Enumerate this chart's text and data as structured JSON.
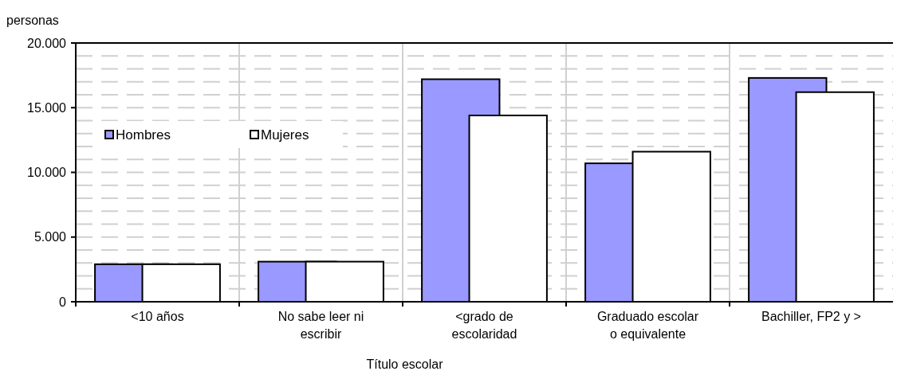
{
  "chart_data": {
    "type": "bar",
    "ylabel": "personas",
    "xlabel": "Título escolar",
    "categories": [
      "<10 años",
      "No sabe leer ni\nescribir",
      "<grado de\nescolaridad",
      "Graduado escolar\no equivalente",
      "Bachiller, FP2 y >"
    ],
    "series": [
      {
        "name": "Hombres",
        "color": "#9999ff",
        "values": [
          2900,
          3100,
          17200,
          10700,
          17300
        ]
      },
      {
        "name": "Mujeres",
        "color": "#ffffff",
        "values": [
          2900,
          3100,
          14400,
          11600,
          16200
        ]
      }
    ],
    "ylim": [
      0,
      20000
    ],
    "yticks": [
      {
        "value": 0,
        "label": "0"
      },
      {
        "value": 1000,
        "label": null
      },
      {
        "value": 2000,
        "label": null
      },
      {
        "value": 3000,
        "label": null
      },
      {
        "value": 4000,
        "label": null
      },
      {
        "value": 5000,
        "label": "5.000"
      },
      {
        "value": 6000,
        "label": null
      },
      {
        "value": 7000,
        "label": null
      },
      {
        "value": 8000,
        "label": null
      },
      {
        "value": 9000,
        "label": null
      },
      {
        "value": 10000,
        "label": "10.000"
      },
      {
        "value": 11000,
        "label": null
      },
      {
        "value": 12000,
        "label": null
      },
      {
        "value": 13000,
        "label": null
      },
      {
        "value": 14000,
        "label": null
      },
      {
        "value": 15000,
        "label": "15.000"
      },
      {
        "value": 16000,
        "label": null
      },
      {
        "value": 17000,
        "label": null
      },
      {
        "value": 18000,
        "label": null
      },
      {
        "value": 19000,
        "label": null
      },
      {
        "value": 20000,
        "label": "20.000"
      }
    ],
    "grid": true,
    "legend": "left"
  }
}
